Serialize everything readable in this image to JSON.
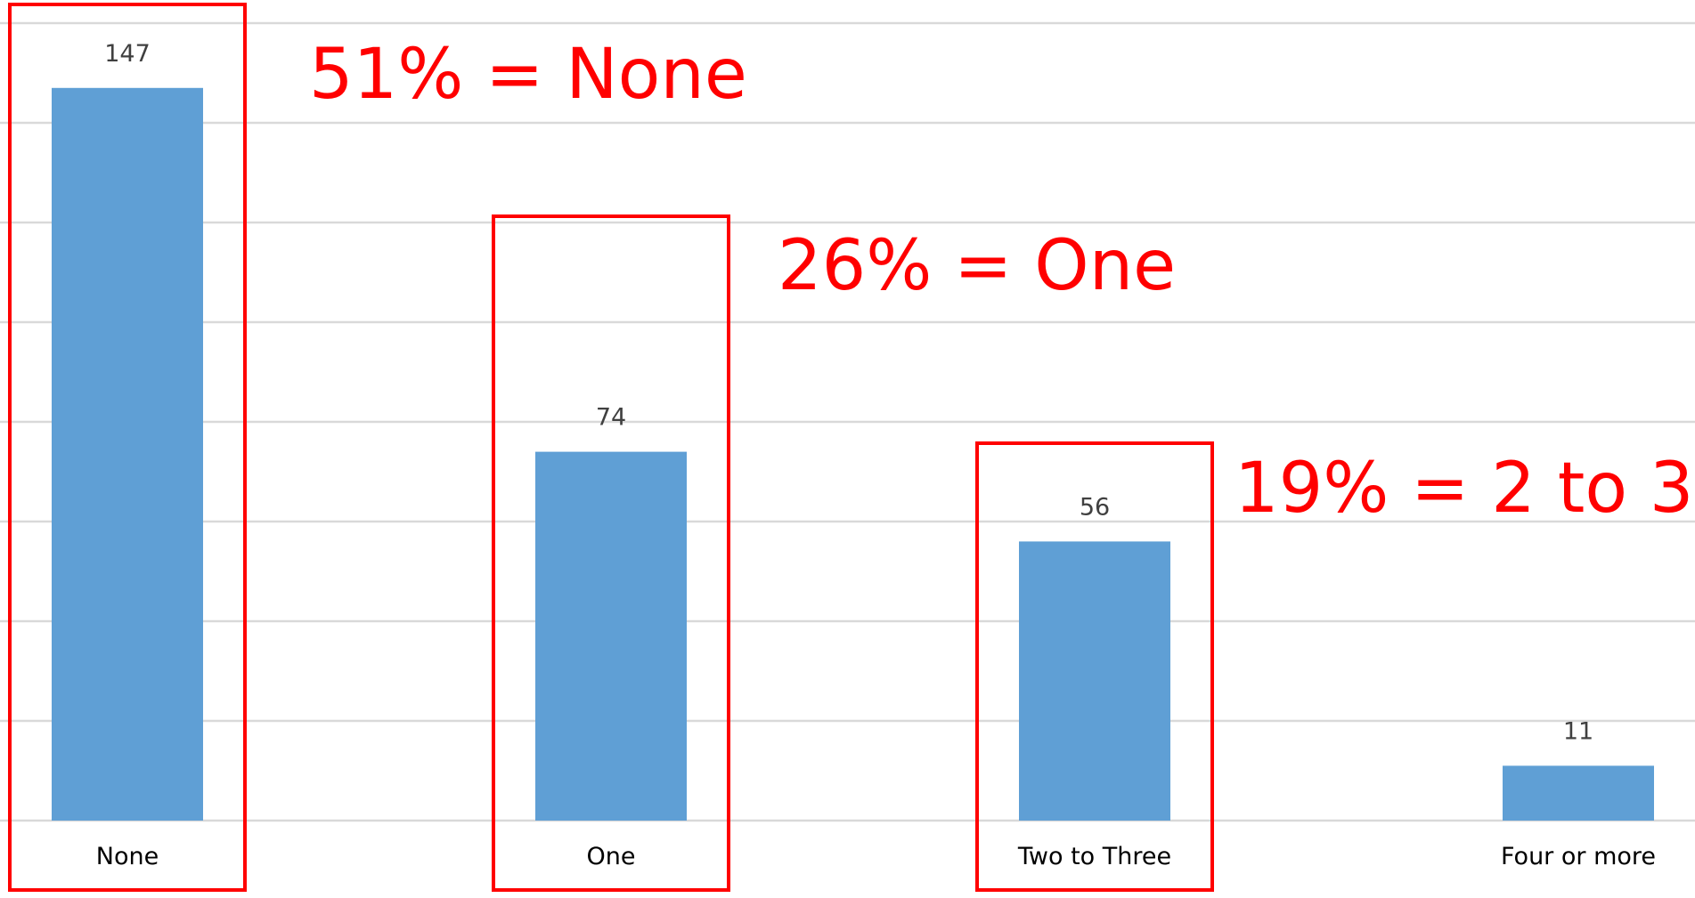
{
  "colors": {
    "bar": "#5f9fd5",
    "gridline": "#d9d9d9",
    "annotation": "#ff0000"
  },
  "chart_data": {
    "type": "bar",
    "categories": [
      "None",
      "One",
      "Two to Three",
      "Four or more"
    ],
    "values": [
      147,
      74,
      56,
      11
    ],
    "data_labels": [
      "147",
      "74",
      "56",
      "11"
    ],
    "ylim": [
      0,
      160
    ],
    "grid": true,
    "gridline_step": 20,
    "annotations": [
      {
        "text": "51% = None",
        "category": "None"
      },
      {
        "text": "26% = One",
        "category": "One"
      },
      {
        "text": "19% = 2 to 3",
        "category": "Two to Three"
      }
    ]
  }
}
